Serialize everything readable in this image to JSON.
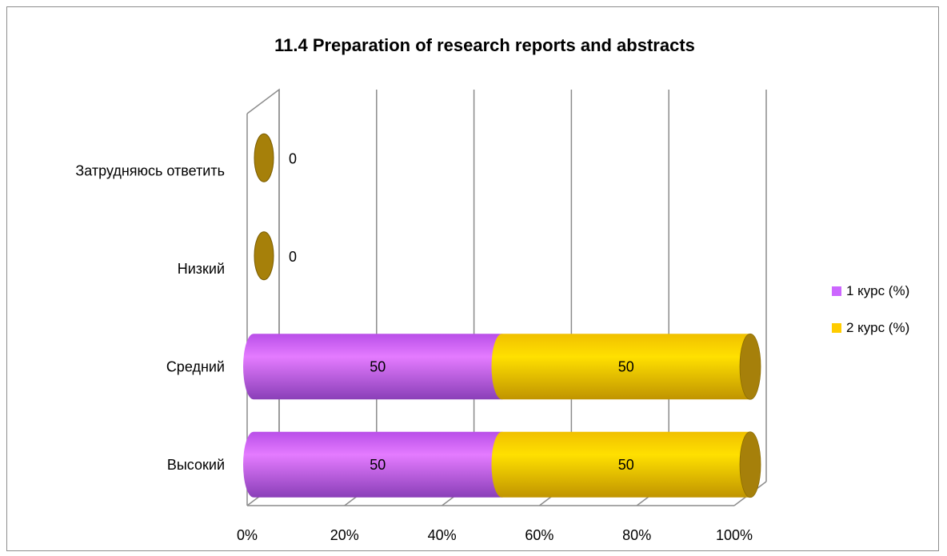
{
  "chart_data": {
    "type": "bar",
    "orientation": "horizontal",
    "stacking": "percent",
    "three_d": true,
    "title": "11.4 Preparation of research reports and abstracts",
    "categories": [
      "Затрудняюсь ответить",
      "Низкий",
      "Средний",
      "Высокий"
    ],
    "series": [
      {
        "name": "1 курс (%)",
        "values": [
          0,
          0,
          50,
          50
        ],
        "color": "#cc66ff"
      },
      {
        "name": "2 курс (%)",
        "values": [
          0,
          0,
          50,
          50
        ],
        "color": "#ffcc00"
      }
    ],
    "zero_marker_color": "#a6800a",
    "xlim": [
      0,
      100
    ],
    "xticks": [
      "0%",
      "20%",
      "40%",
      "60%",
      "80%",
      "100%"
    ],
    "grid": true,
    "legend": "right"
  }
}
